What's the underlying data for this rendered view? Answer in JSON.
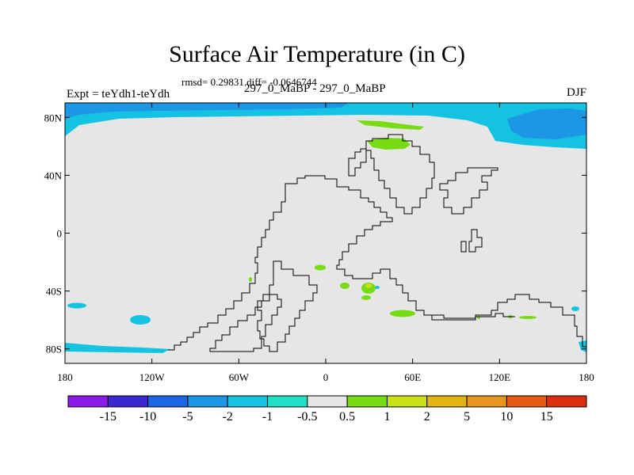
{
  "title": "Surface Air Temperature (in C)",
  "stats": "rmsd= 0.29831 diff= -0.0646744",
  "left_label": "Expt = teYdh1-teYdh",
  "center_label": "297_0_MaBP - 297_0_MaBP",
  "right_label": "DJF",
  "lat_ticks": [
    "80N",
    "40N",
    "0",
    "40S",
    "80S"
  ],
  "lon_ticks": [
    "180",
    "120W",
    "60W",
    "0",
    "60E",
    "120E",
    "180"
  ],
  "colorbar": {
    "colors": [
      "#8a1ae6",
      "#3c28d2",
      "#1e64e6",
      "#1e96e6",
      "#14c3e1",
      "#1ee1c8",
      "#e6e6e6",
      "#78dc14",
      "#c8e114",
      "#e1b414",
      "#e6961e",
      "#e65a14",
      "#dc2d0f"
    ],
    "labels": [
      "-15",
      "-10",
      "-5",
      "-2",
      "-1",
      "-0.5",
      "0.5",
      "1",
      "2",
      "5",
      "10",
      "15"
    ]
  },
  "chart_data": {
    "type": "heatmap",
    "title": "Surface Air Temperature (in C)",
    "subtitle": "297_0_MaBP - 297_0_MaBP",
    "season": "DJF",
    "xlim": [
      -180,
      180
    ],
    "ylim": [
      -90,
      90
    ],
    "levels": [
      -15,
      -10,
      -5,
      -2,
      -1,
      -0.5,
      0.5,
      1,
      2,
      5,
      10,
      15
    ],
    "background_class": "-0.5 to 0.5"
  }
}
